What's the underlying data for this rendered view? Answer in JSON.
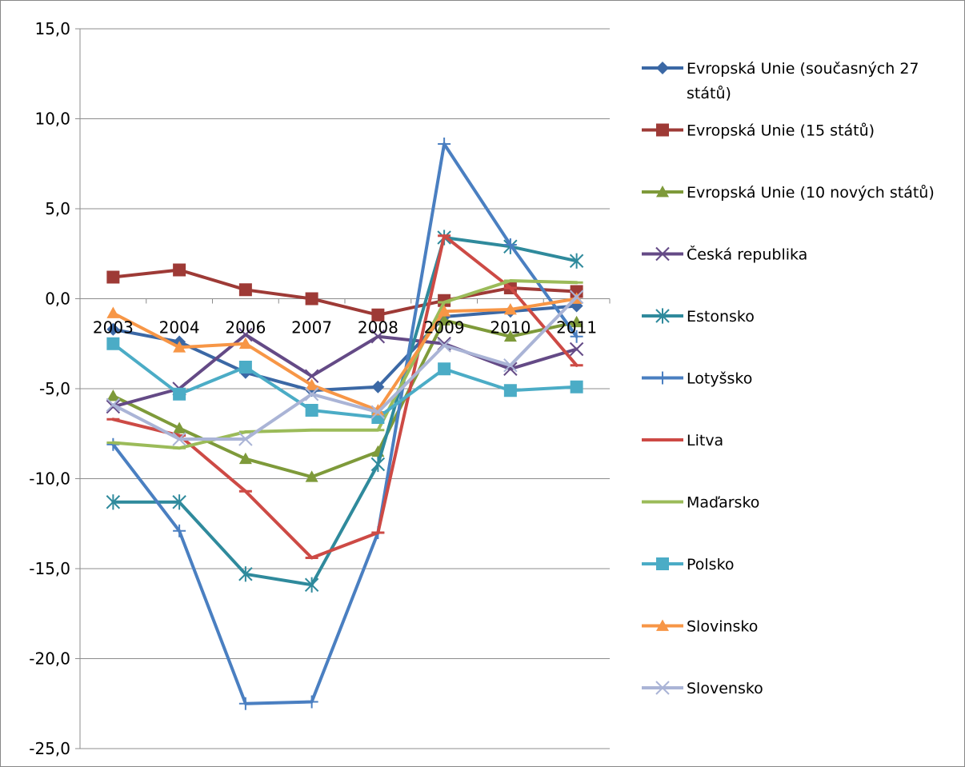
{
  "chart_data": {
    "type": "line",
    "title": "",
    "xlabel": "",
    "ylabel": "",
    "categories": [
      "2003",
      "2004",
      "2006",
      "2007",
      "2008",
      "2009",
      "2010",
      "2011"
    ],
    "ylim": [
      -25,
      15
    ],
    "yticks": [
      15,
      10,
      5,
      0,
      -5,
      -10,
      -15,
      -20,
      -25
    ],
    "ytick_labels": [
      "15,0",
      "10,0",
      "5,0",
      "0,0",
      "-5,0",
      "-10,0",
      "-15,0",
      "-20,0",
      "-25,0"
    ],
    "grid": "horizontal",
    "legend_position": "right",
    "series": [
      {
        "name": "Evropská Unie (současných 27 států)",
        "legend_lines": [
          "Evropská Unie (současných 27",
          "států)"
        ],
        "color": "#3b68a5",
        "marker": "diamond",
        "values": [
          -1.7,
          -2.4,
          -4.1,
          -5.1,
          -4.9,
          -1.0,
          -0.7,
          -0.4
        ]
      },
      {
        "name": "Evropská Unie (15 států)",
        "legend_lines": [
          "Evropská Unie (15 států)"
        ],
        "color": "#9e3a36",
        "marker": "square",
        "values": [
          1.2,
          1.6,
          0.5,
          0.0,
          -0.9,
          -0.1,
          0.6,
          0.4
        ]
      },
      {
        "name": "Evropská Unie (10 nových států)",
        "legend_lines": [
          "Evropská Unie (10 nových států)"
        ],
        "color": "#7e9a3a",
        "marker": "triangle",
        "values": [
          -5.4,
          -7.2,
          -8.9,
          -9.9,
          -8.5,
          -1.2,
          -2.1,
          -1.3
        ]
      },
      {
        "name": "Česká republika",
        "legend_lines": [
          "Česká republika"
        ],
        "color": "#644a86",
        "marker": "x",
        "values": [
          -6.0,
          -5.0,
          -2.0,
          -4.3,
          -2.1,
          -2.5,
          -3.9,
          -2.8
        ]
      },
      {
        "name": "Estonsko",
        "legend_lines": [
          "Estonsko"
        ],
        "color": "#2f8a9c",
        "marker": "asterisk",
        "values": [
          -11.3,
          -11.3,
          -15.3,
          -15.9,
          -9.2,
          3.4,
          2.9,
          2.1
        ]
      },
      {
        "name": "Lotyšsko",
        "legend_lines": [
          "Lotyšsko"
        ],
        "color": "#4a7fc1",
        "marker": "plus",
        "values": [
          -8.1,
          -12.9,
          -22.5,
          -22.4,
          -13.0,
          8.6,
          3.0,
          -2.1
        ]
      },
      {
        "name": "Litva",
        "legend_lines": [
          "Litva"
        ],
        "color": "#cd4a45",
        "marker": "dash",
        "values": [
          -6.7,
          -7.6,
          -10.7,
          -14.4,
          -13.0,
          3.5,
          0.6,
          -3.7
        ]
      },
      {
        "name": "Maďarsko",
        "legend_lines": [
          "Maďarsko"
        ],
        "color": "#9bbb59",
        "marker": "dash",
        "values": [
          -8.0,
          -8.3,
          -7.4,
          -7.3,
          -7.3,
          -0.2,
          1.0,
          0.9
        ]
      },
      {
        "name": "Polsko",
        "legend_lines": [
          "Polsko"
        ],
        "color": "#4bacc6",
        "marker": "square",
        "values": [
          -2.5,
          -5.3,
          -3.8,
          -6.2,
          -6.6,
          -3.9,
          -5.1,
          -4.9
        ]
      },
      {
        "name": "Slovinsko",
        "legend_lines": [
          "Slovinsko"
        ],
        "color": "#f79646",
        "marker": "triangle",
        "values": [
          -0.8,
          -2.7,
          -2.5,
          -4.8,
          -6.2,
          -0.7,
          -0.6,
          0.0
        ]
      },
      {
        "name": "Slovensko",
        "legend_lines": [
          "Slovensko"
        ],
        "color": "#aab4d6",
        "marker": "x",
        "values": [
          -5.9,
          -7.8,
          -7.8,
          -5.3,
          -6.3,
          -2.6,
          -3.7,
          0.1
        ]
      }
    ]
  }
}
